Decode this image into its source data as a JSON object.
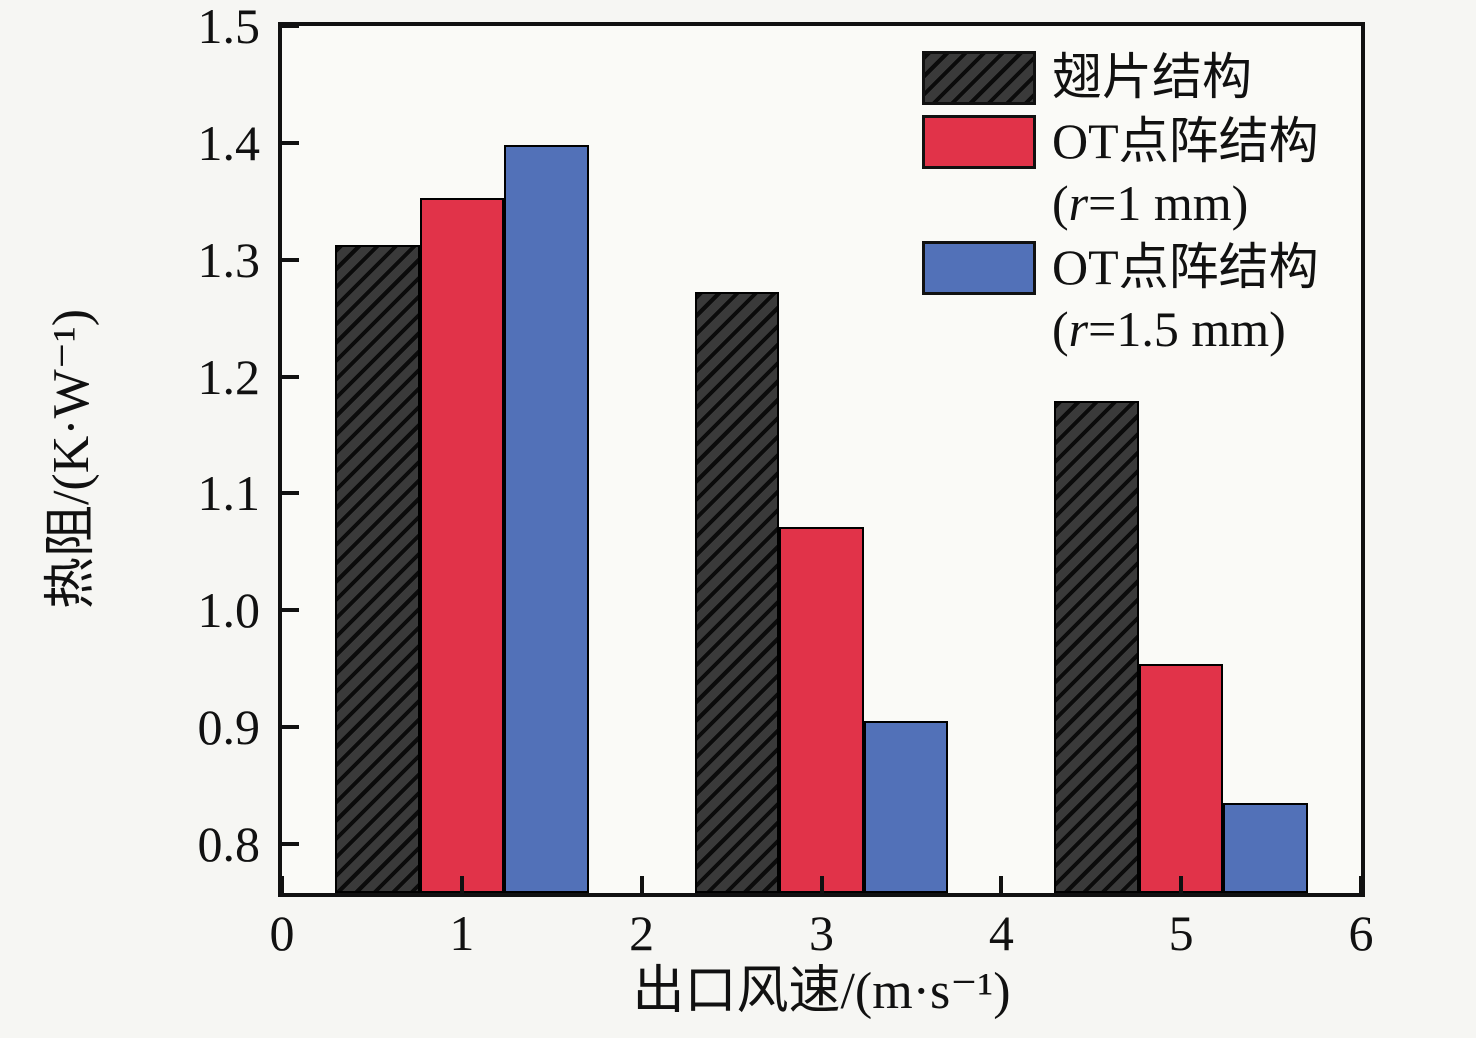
{
  "figure": {
    "background": "#f6f6f3",
    "plot_background": "#fafaf7",
    "axis_color": "#111111"
  },
  "chart_data": {
    "type": "bar",
    "title": "",
    "xlabel": "出口风速/(m·s⁻¹)",
    "ylabel": "热阻/(K·W⁻¹)",
    "categories": [
      1,
      3,
      5
    ],
    "series": [
      {
        "name": "翅片结构",
        "sublabel": "",
        "pattern": {
          "fill": "#3a3a3a",
          "stripe": "#0b0b0b",
          "hatch": "forward-diagonal"
        },
        "color": "#3a3a3a",
        "values": [
          1.313,
          1.272,
          1.179
        ]
      },
      {
        "name": "OT点阵结构",
        "sublabel": "(r=1 mm)",
        "pattern": null,
        "color": "#e13349",
        "values": [
          1.353,
          1.071,
          0.954
        ]
      },
      {
        "name": "OT点阵结构",
        "sublabel": "(r=1.5 mm)",
        "pattern": null,
        "color": "#5271b8",
        "values": [
          1.398,
          0.905,
          0.835
        ]
      }
    ],
    "xlim": [
      0,
      6
    ],
    "ylim": [
      0.758,
      1.5
    ],
    "xticks": [
      0,
      1,
      2,
      3,
      4,
      5,
      6
    ],
    "xticklabels": [
      "0",
      "1",
      "2",
      "3",
      "4",
      "5",
      "6"
    ],
    "yticks": [
      0.8,
      0.9,
      1.0,
      1.1,
      1.2,
      1.3,
      1.4,
      1.5
    ],
    "yticklabels": [
      "0.8",
      "0.9",
      "1.0",
      "1.1",
      "1.2",
      "1.3",
      "1.4",
      "1.5"
    ],
    "bar_width": 0.47,
    "group_offsets": [
      -0.47,
      0,
      0.47
    ],
    "grid": false,
    "legend_position": "top-right"
  }
}
